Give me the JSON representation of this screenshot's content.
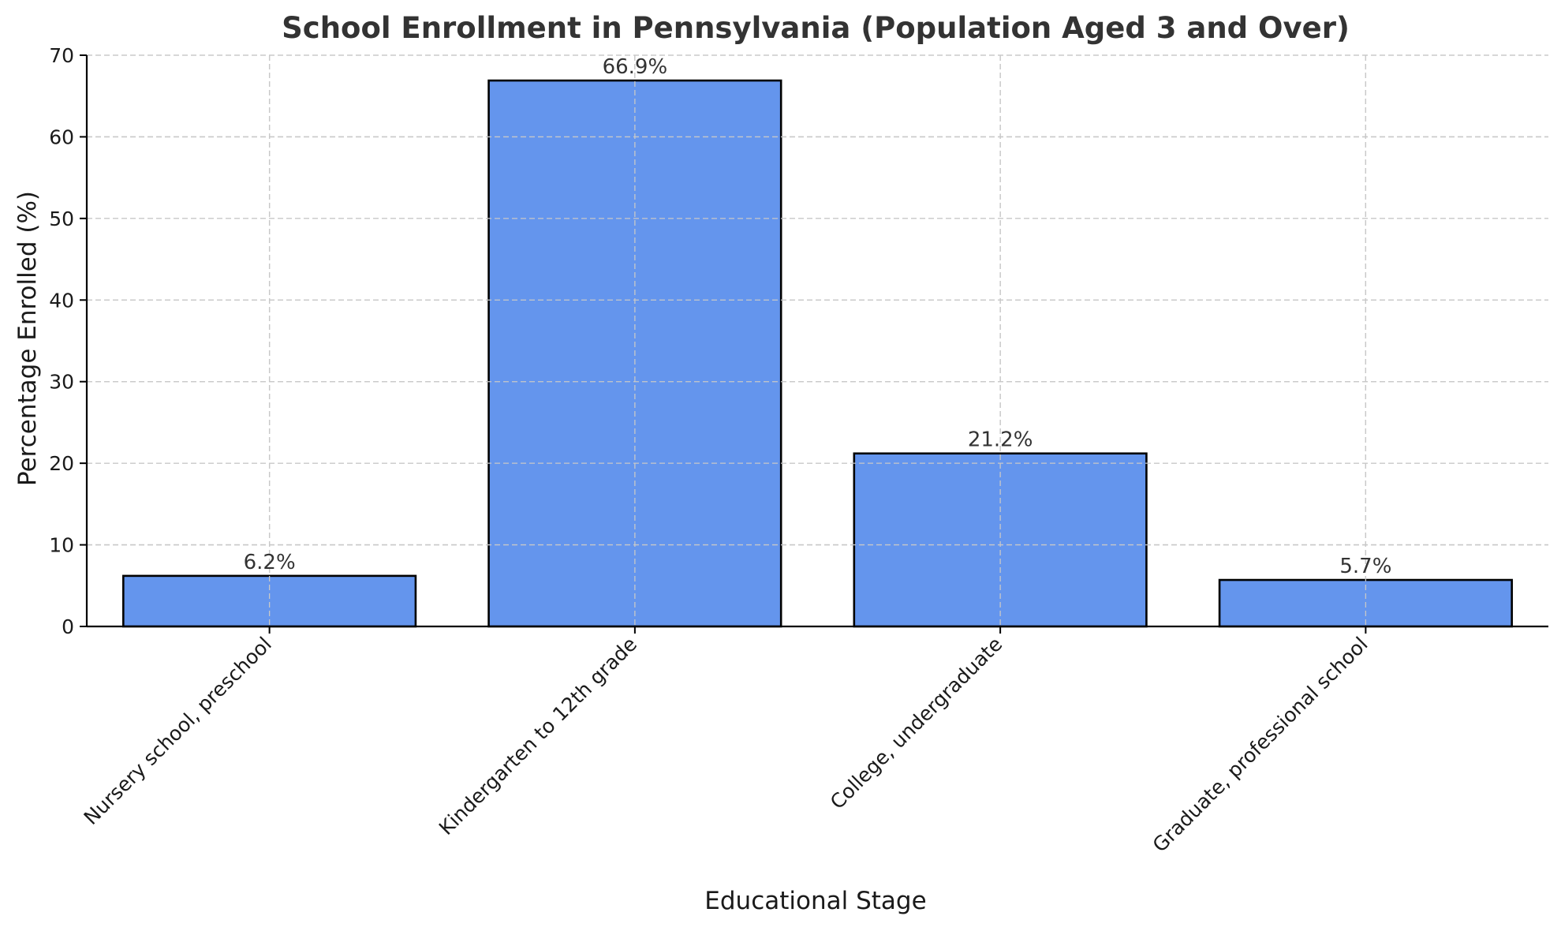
{
  "chart_data": {
    "type": "bar",
    "title": "School Enrollment in Pennsylvania (Population Aged 3 and Over)",
    "xlabel": "Educational Stage",
    "ylabel": "Percentage Enrolled (%)",
    "categories": [
      "Nursery school, preschool",
      "Kindergarten to 12th grade",
      "College, undergraduate",
      "Graduate, professional school"
    ],
    "values": [
      6.2,
      66.9,
      21.2,
      5.7
    ],
    "data_labels": [
      "6.2%",
      "66.9%",
      "21.2%",
      "5.7%"
    ],
    "ylim": [
      0,
      70
    ],
    "yticks": [
      0,
      10,
      20,
      30,
      40,
      50,
      60,
      70
    ],
    "grid": true,
    "bar_color": "#6495ED",
    "edge_color": "#000000"
  }
}
